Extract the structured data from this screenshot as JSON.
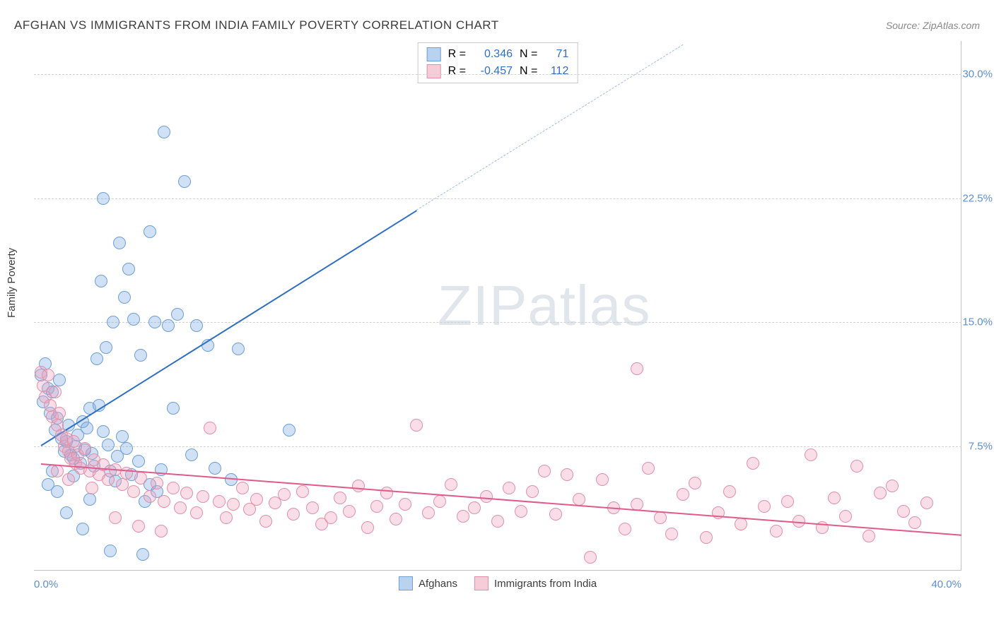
{
  "title": "AFGHAN VS IMMIGRANTS FROM INDIA FAMILY POVERTY CORRELATION CHART",
  "source": "Source: ZipAtlas.com",
  "ylabel": "Family Poverty",
  "watermark_a": "ZIP",
  "watermark_b": "atlas",
  "chart": {
    "type": "scatter",
    "background_color": "#ffffff",
    "grid_color": "#d0d0d0",
    "axis_color": "#c0c0c0",
    "xlim": [
      0,
      40
    ],
    "ylim": [
      0,
      32
    ],
    "xtick_labels": [
      "0.0%",
      "40.0%"
    ],
    "ytick_positions": [
      7.5,
      15.0,
      22.5,
      30.0
    ],
    "ytick_labels": [
      "7.5%",
      "15.0%",
      "22.5%",
      "30.0%"
    ],
    "marker_radius": 9,
    "marker_border_width": 1.5,
    "series": [
      {
        "name": "Afghans",
        "fill_color": "rgba(120,170,225,0.35)",
        "stroke_color": "#6c9fd8",
        "legend_swatch_fill": "#b9d2ee",
        "legend_swatch_stroke": "#6c9fd8",
        "R": "0.346",
        "N": "71",
        "trend": {
          "x1": 0.3,
          "y1": 7.6,
          "x2": 16.5,
          "y2": 21.8,
          "color": "#2f6fc4",
          "width": 2,
          "style": "solid"
        },
        "trend_dashed": {
          "x1": 16.5,
          "y1": 21.8,
          "x2": 28.0,
          "y2": 31.8,
          "color": "#9bbde6",
          "width": 1.5,
          "style": "dashed"
        },
        "points": [
          [
            0.3,
            11.8
          ],
          [
            0.4,
            10.2
          ],
          [
            0.5,
            12.5
          ],
          [
            0.6,
            11.0
          ],
          [
            0.7,
            9.5
          ],
          [
            0.8,
            10.8
          ],
          [
            0.9,
            8.5
          ],
          [
            1.0,
            9.2
          ],
          [
            1.1,
            11.5
          ],
          [
            1.2,
            8.0
          ],
          [
            1.3,
            7.2
          ],
          [
            1.4,
            7.8
          ],
          [
            1.5,
            8.8
          ],
          [
            1.6,
            7.0
          ],
          [
            1.7,
            6.8
          ],
          [
            1.8,
            7.5
          ],
          [
            1.9,
            8.2
          ],
          [
            2.0,
            6.5
          ],
          [
            2.1,
            9.0
          ],
          [
            2.2,
            7.3
          ],
          [
            2.3,
            8.6
          ],
          [
            2.4,
            9.8
          ],
          [
            2.5,
            7.1
          ],
          [
            2.6,
            6.3
          ],
          [
            2.8,
            10.0
          ],
          [
            3.0,
            8.4
          ],
          [
            3.2,
            7.6
          ],
          [
            3.3,
            6.0
          ],
          [
            3.5,
            5.4
          ],
          [
            3.6,
            6.9
          ],
          [
            3.8,
            8.1
          ],
          [
            4.0,
            7.4
          ],
          [
            4.2,
            5.8
          ],
          [
            4.5,
            6.6
          ],
          [
            4.8,
            4.2
          ],
          [
            5.0,
            5.2
          ],
          [
            5.3,
            4.8
          ],
          [
            5.5,
            6.1
          ],
          [
            2.7,
            12.8
          ],
          [
            3.1,
            13.5
          ],
          [
            3.4,
            15.0
          ],
          [
            3.9,
            16.5
          ],
          [
            4.3,
            15.2
          ],
          [
            4.6,
            13.0
          ],
          [
            5.2,
            15.0
          ],
          [
            5.8,
            14.8
          ],
          [
            6.2,
            15.5
          ],
          [
            7.0,
            14.8
          ],
          [
            7.5,
            13.6
          ],
          [
            8.8,
            13.4
          ],
          [
            2.9,
            17.5
          ],
          [
            3.7,
            19.8
          ],
          [
            4.1,
            18.2
          ],
          [
            5.0,
            20.5
          ],
          [
            6.5,
            23.5
          ],
          [
            3.0,
            22.5
          ],
          [
            5.6,
            26.5
          ],
          [
            6.0,
            9.8
          ],
          [
            4.7,
            1.0
          ],
          [
            3.3,
            1.2
          ],
          [
            2.1,
            2.5
          ],
          [
            1.4,
            3.5
          ],
          [
            1.0,
            4.8
          ],
          [
            0.8,
            6.0
          ],
          [
            0.6,
            5.2
          ],
          [
            1.7,
            5.7
          ],
          [
            2.4,
            4.3
          ],
          [
            11.0,
            8.5
          ],
          [
            6.8,
            7.0
          ],
          [
            7.8,
            6.2
          ],
          [
            8.5,
            5.5
          ]
        ]
      },
      {
        "name": "Immigrants from India",
        "fill_color": "rgba(240,160,185,0.35)",
        "stroke_color": "#e38fa8",
        "legend_swatch_fill": "#f4cdd9",
        "legend_swatch_stroke": "#e38fa8",
        "R": "-0.457",
        "N": "112",
        "trend": {
          "x1": 0.3,
          "y1": 6.5,
          "x2": 40.0,
          "y2": 2.2,
          "color": "#e05a8a",
          "width": 2,
          "style": "solid"
        },
        "points": [
          [
            0.3,
            12.0
          ],
          [
            0.4,
            11.2
          ],
          [
            0.5,
            10.5
          ],
          [
            0.6,
            11.8
          ],
          [
            0.7,
            10.0
          ],
          [
            0.8,
            9.3
          ],
          [
            0.9,
            10.8
          ],
          [
            1.0,
            8.8
          ],
          [
            1.1,
            9.5
          ],
          [
            1.2,
            8.2
          ],
          [
            1.3,
            7.5
          ],
          [
            1.4,
            8.0
          ],
          [
            1.5,
            7.2
          ],
          [
            1.6,
            6.8
          ],
          [
            1.7,
            7.8
          ],
          [
            1.8,
            6.5
          ],
          [
            1.9,
            7.0
          ],
          [
            2.0,
            6.2
          ],
          [
            2.2,
            7.4
          ],
          [
            2.4,
            6.0
          ],
          [
            2.6,
            6.7
          ],
          [
            2.8,
            5.8
          ],
          [
            3.0,
            6.4
          ],
          [
            3.2,
            5.5
          ],
          [
            3.5,
            6.1
          ],
          [
            3.8,
            5.2
          ],
          [
            4.0,
            5.9
          ],
          [
            4.3,
            4.8
          ],
          [
            4.6,
            5.6
          ],
          [
            5.0,
            4.5
          ],
          [
            5.3,
            5.3
          ],
          [
            5.6,
            4.2
          ],
          [
            6.0,
            5.0
          ],
          [
            6.3,
            3.8
          ],
          [
            6.6,
            4.7
          ],
          [
            7.0,
            3.5
          ],
          [
            7.3,
            4.5
          ],
          [
            7.6,
            8.6
          ],
          [
            8.0,
            4.2
          ],
          [
            8.3,
            3.2
          ],
          [
            8.6,
            4.0
          ],
          [
            9.0,
            5.0
          ],
          [
            9.3,
            3.7
          ],
          [
            9.6,
            4.3
          ],
          [
            10.0,
            3.0
          ],
          [
            10.4,
            4.1
          ],
          [
            10.8,
            4.6
          ],
          [
            11.2,
            3.4
          ],
          [
            11.6,
            4.8
          ],
          [
            12.0,
            3.8
          ],
          [
            12.4,
            2.8
          ],
          [
            12.8,
            3.2
          ],
          [
            13.2,
            4.4
          ],
          [
            13.6,
            3.6
          ],
          [
            14.0,
            5.1
          ],
          [
            14.4,
            2.6
          ],
          [
            14.8,
            3.9
          ],
          [
            15.2,
            4.7
          ],
          [
            15.6,
            3.1
          ],
          [
            16.0,
            4.0
          ],
          [
            16.5,
            8.8
          ],
          [
            17.0,
            3.5
          ],
          [
            17.5,
            4.2
          ],
          [
            18.0,
            5.2
          ],
          [
            18.5,
            3.3
          ],
          [
            19.0,
            3.8
          ],
          [
            19.5,
            4.5
          ],
          [
            20.0,
            3.0
          ],
          [
            20.5,
            5.0
          ],
          [
            21.0,
            3.6
          ],
          [
            21.5,
            4.8
          ],
          [
            22.0,
            6.0
          ],
          [
            22.5,
            3.4
          ],
          [
            23.0,
            5.8
          ],
          [
            23.5,
            4.3
          ],
          [
            24.0,
            0.8
          ],
          [
            24.5,
            5.5
          ],
          [
            25.0,
            3.8
          ],
          [
            25.5,
            2.5
          ],
          [
            26.0,
            4.0
          ],
          [
            26.5,
            6.2
          ],
          [
            27.0,
            3.2
          ],
          [
            27.5,
            2.2
          ],
          [
            28.0,
            4.6
          ],
          [
            28.5,
            5.3
          ],
          [
            29.0,
            2.0
          ],
          [
            29.5,
            3.5
          ],
          [
            30.0,
            4.8
          ],
          [
            30.5,
            2.8
          ],
          [
            31.0,
            6.5
          ],
          [
            31.5,
            3.9
          ],
          [
            32.0,
            2.4
          ],
          [
            32.5,
            4.2
          ],
          [
            33.0,
            3.0
          ],
          [
            33.5,
            7.0
          ],
          [
            34.0,
            2.6
          ],
          [
            34.5,
            4.4
          ],
          [
            35.0,
            3.3
          ],
          [
            35.5,
            6.3
          ],
          [
            36.0,
            2.1
          ],
          [
            36.5,
            4.7
          ],
          [
            37.0,
            5.1
          ],
          [
            37.5,
            3.6
          ],
          [
            38.0,
            2.9
          ],
          [
            38.5,
            4.1
          ],
          [
            26.0,
            12.2
          ],
          [
            1.0,
            6.0
          ],
          [
            1.5,
            5.5
          ],
          [
            2.5,
            5.0
          ],
          [
            3.5,
            3.2
          ],
          [
            4.5,
            2.7
          ],
          [
            5.5,
            2.4
          ]
        ]
      }
    ],
    "legend_top": {
      "label_R": "R =",
      "label_N": "N ="
    },
    "legend_bottom_labels": [
      "Afghans",
      "Immigrants from India"
    ]
  }
}
